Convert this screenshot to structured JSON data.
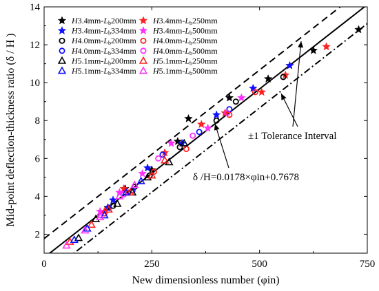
{
  "chart_data": {
    "type": "scatter",
    "xlabel": "New dimensionless number (φin)",
    "ylabel": "Mid-point deflection-thickness ratio (δ / H )",
    "xlim": [
      0,
      750
    ],
    "ylim": [
      1,
      14
    ],
    "x_ticks": [
      0,
      250,
      500,
      750
    ],
    "y_ticks": [
      2,
      4,
      6,
      8,
      10,
      12,
      14
    ],
    "grid": false,
    "legend_position": "top-left",
    "series": [
      {
        "name": "H3.4mm-Lb200mm",
        "marker": "star",
        "color": "#000000",
        "filled": true,
        "points": [
          [
            148,
            3.4
          ],
          [
            188,
            4.4
          ],
          [
            250,
            5.4
          ],
          [
            310,
            6.9
          ],
          [
            335,
            8.1
          ],
          [
            430,
            9.2
          ],
          [
            520,
            10.2
          ],
          [
            625,
            11.7
          ],
          [
            730,
            12.8
          ]
        ]
      },
      {
        "name": "H3.4mm-Lb250mm",
        "marker": "star",
        "color": "#ff2020",
        "filled": true,
        "points": [
          [
            140,
            3.2
          ],
          [
            185,
            4.4
          ],
          [
            280,
            6.3
          ],
          [
            365,
            7.8
          ],
          [
            420,
            8.4
          ],
          [
            505,
            9.5
          ],
          [
            560,
            10.4
          ],
          [
            655,
            11.9
          ]
        ]
      },
      {
        "name": "H3.4mm-Lb334mm",
        "marker": "star",
        "color": "#1010ff",
        "filled": true,
        "points": [
          [
            160,
            3.8
          ],
          [
            240,
            5.5
          ],
          [
            320,
            6.8
          ],
          [
            400,
            8.3
          ],
          [
            485,
            9.7
          ],
          [
            570,
            10.9
          ]
        ]
      },
      {
        "name": "H3.4mm-Lb500mm",
        "marker": "star",
        "color": "#ff30ff",
        "filled": true,
        "points": [
          [
            130,
            3.2
          ],
          [
            175,
            4.2
          ],
          [
            228,
            5.2
          ],
          [
            295,
            6.8
          ],
          [
            380,
            7.6
          ],
          [
            458,
            9.2
          ]
        ]
      },
      {
        "name": "H4.0mm-Lb200mm",
        "marker": "circle",
        "color": "#000000",
        "filled": false,
        "points": [
          [
            160,
            3.5
          ],
          [
            210,
            4.5
          ],
          [
            245,
            5.1
          ],
          [
            315,
            6.6
          ],
          [
            400,
            8.0
          ],
          [
            445,
            9.0
          ],
          [
            555,
            10.3
          ]
        ]
      },
      {
        "name": "H4.0mm-Lb250mm",
        "marker": "circle",
        "color": "#ff2020",
        "filled": false,
        "points": [
          [
            140,
            3.1
          ],
          [
            195,
            4.2
          ],
          [
            255,
            5.3
          ],
          [
            330,
            6.5
          ],
          [
            430,
            8.3
          ],
          [
            490,
            9.5
          ]
        ]
      },
      {
        "name": "H4.0mm-Lb334mm",
        "marker": "circle",
        "color": "#1010ff",
        "filled": false,
        "points": [
          [
            150,
            3.4
          ],
          [
            205,
            4.3
          ],
          [
            275,
            6.2
          ],
          [
            360,
            7.4
          ],
          [
            430,
            8.6
          ]
        ]
      },
      {
        "name": "H4.0mm-Lb500mm",
        "marker": "circle",
        "color": "#ff30ff",
        "filled": false,
        "points": [
          [
            130,
            3.0
          ],
          [
            185,
            4.1
          ],
          [
            265,
            6.0
          ],
          [
            345,
            7.2
          ],
          [
            425,
            8.4
          ]
        ]
      },
      {
        "name": "H5.1mm-Lb200mm",
        "marker": "triangle",
        "color": "#000000",
        "filled": false,
        "points": [
          [
            80,
            1.8
          ],
          [
            120,
            2.8
          ],
          [
            170,
            3.6
          ],
          [
            205,
            4.2
          ],
          [
            240,
            5.0
          ],
          [
            290,
            5.8
          ],
          [
            325,
            6.8
          ]
        ]
      },
      {
        "name": "H5.1mm-Lb250mm",
        "marker": "triangle",
        "color": "#ff2020",
        "filled": false,
        "points": [
          [
            60,
            1.6
          ],
          [
            110,
            2.5
          ],
          [
            150,
            3.3
          ],
          [
            200,
            4.2
          ],
          [
            250,
            5.1
          ],
          [
            280,
            5.9
          ]
        ]
      },
      {
        "name": "H5.1mm-Lb334mm",
        "marker": "triangle",
        "color": "#1010ff",
        "filled": false,
        "points": [
          [
            70,
            1.7
          ],
          [
            100,
            2.3
          ],
          [
            140,
            3.0
          ],
          [
            190,
            4.2
          ],
          [
            225,
            4.8
          ]
        ]
      },
      {
        "name": "H5.1mm-Lb500mm",
        "marker": "triangle",
        "color": "#ff30ff",
        "filled": false,
        "points": [
          [
            52,
            1.4
          ],
          [
            95,
            2.2
          ],
          [
            130,
            2.9
          ],
          [
            175,
            4.0
          ],
          [
            210,
            4.6
          ]
        ]
      }
    ],
    "fit_line": {
      "slope": 0.0178,
      "intercept": 0.7678,
      "style": "solid"
    },
    "tolerance_lines": [
      {
        "offset": 1,
        "style": "dashed"
      },
      {
        "offset": -1,
        "style": "dash-dot"
      }
    ],
    "annotations": {
      "tolerance_label": "±1 Tolerance Interval",
      "equation_label": "δ /H=0.0178×φin+0.7678"
    }
  }
}
